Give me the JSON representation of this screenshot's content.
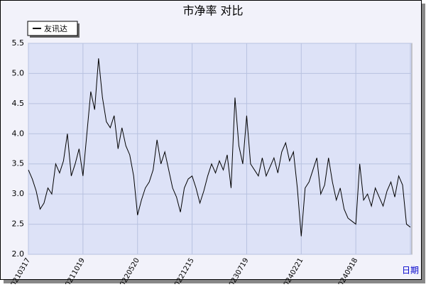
{
  "chart_data": {
    "type": "line",
    "title": "市净率  对比",
    "x_label": "日期",
    "categories": [
      "20210317",
      null,
      null,
      null,
      null,
      null,
      null,
      null,
      null,
      null,
      null,
      null,
      null,
      null,
      "20211019",
      null,
      null,
      null,
      null,
      null,
      null,
      null,
      null,
      null,
      null,
      null,
      null,
      null,
      "20220520",
      null,
      null,
      null,
      null,
      null,
      null,
      null,
      null,
      null,
      null,
      null,
      null,
      null,
      "20221215",
      null,
      null,
      null,
      null,
      null,
      null,
      null,
      null,
      null,
      null,
      null,
      null,
      null,
      "20230719",
      null,
      null,
      null,
      null,
      null,
      null,
      null,
      null,
      null,
      null,
      null,
      null,
      null,
      "20240221",
      null,
      null,
      null,
      null,
      null,
      null,
      null,
      null,
      null,
      null,
      null,
      null,
      null,
      "20240918",
      null,
      null,
      null,
      null,
      null,
      null,
      null,
      null,
      null,
      null,
      null,
      null,
      null,
      null
    ],
    "series": [
      {
        "name": "友讯达",
        "color": "#000000",
        "values": [
          3.4,
          3.25,
          3.05,
          2.75,
          2.85,
          3.1,
          3.0,
          3.5,
          3.35,
          3.55,
          4.0,
          3.3,
          3.5,
          3.75,
          3.3,
          4.0,
          4.7,
          4.4,
          5.25,
          4.6,
          4.2,
          4.1,
          4.3,
          3.75,
          4.1,
          3.8,
          3.65,
          3.3,
          2.65,
          2.9,
          3.1,
          3.2,
          3.4,
          3.9,
          3.5,
          3.7,
          3.4,
          3.1,
          2.95,
          2.7,
          3.1,
          3.25,
          3.3,
          3.1,
          2.85,
          3.05,
          3.3,
          3.5,
          3.35,
          3.55,
          3.4,
          3.65,
          3.1,
          4.6,
          3.8,
          3.5,
          4.3,
          3.5,
          3.4,
          3.3,
          3.6,
          3.3,
          3.45,
          3.6,
          3.35,
          3.7,
          3.85,
          3.55,
          3.7,
          3.1,
          2.3,
          3.1,
          3.2,
          3.4,
          3.6,
          3.0,
          3.15,
          3.6,
          3.2,
          2.9,
          3.1,
          2.75,
          2.6,
          2.55,
          2.5,
          3.5,
          2.9,
          3.0,
          2.8,
          3.1,
          2.95,
          2.8,
          3.05,
          3.2,
          2.95,
          3.3,
          3.15,
          2.5,
          2.45
        ]
      }
    ],
    "ylim": [
      2,
      5.5
    ],
    "yticks": [
      {
        "value": 2,
        "label": "2.0"
      },
      2.5,
      {
        "value": 3,
        "label": "3.0"
      },
      3.5,
      {
        "value": 4,
        "label": "4.0"
      },
      4.5,
      {
        "value": 5,
        "label": "5.0"
      },
      5.5
    ],
    "grid": true
  }
}
